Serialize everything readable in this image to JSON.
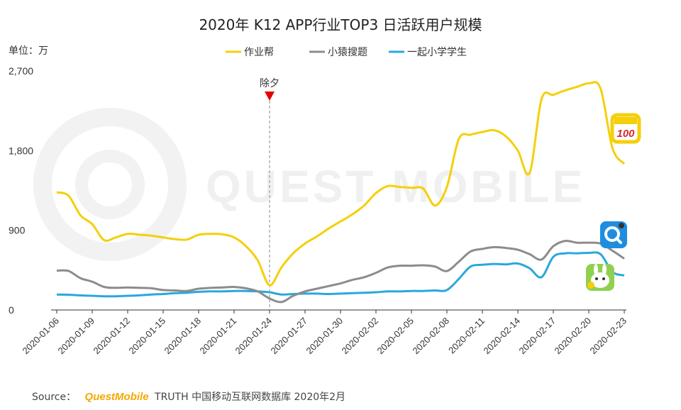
{
  "chart_data": {
    "type": "line",
    "title": "2020年 K12 APP行业TOP3 日活跃用户规模",
    "unit_label": "单位：万",
    "ylim": [
      0,
      2700
    ],
    "yticks": [
      0,
      900,
      1800,
      2700
    ],
    "ytick_labels": [
      "0",
      "900",
      "1,800",
      "2,700"
    ],
    "xtick_labels": [
      "2020-01-06",
      "2020-01-09",
      "2020-01-12",
      "2020-01-15",
      "2020-01-18",
      "2020-01-21",
      "2020-01-24",
      "2020-01-27",
      "2020-01-30",
      "2020-02-02",
      "2020-02-05",
      "2020-02-08",
      "2020-02-11",
      "2020-02-14",
      "2020-02-17",
      "2020-02-20",
      "2020-02-23"
    ],
    "x": [
      "2020-01-06",
      "2020-01-07",
      "2020-01-08",
      "2020-01-09",
      "2020-01-10",
      "2020-01-11",
      "2020-01-12",
      "2020-01-13",
      "2020-01-14",
      "2020-01-15",
      "2020-01-16",
      "2020-01-17",
      "2020-01-18",
      "2020-01-19",
      "2020-01-20",
      "2020-01-21",
      "2020-01-22",
      "2020-01-23",
      "2020-01-24",
      "2020-01-25",
      "2020-01-26",
      "2020-01-27",
      "2020-01-28",
      "2020-01-29",
      "2020-01-30",
      "2020-01-31",
      "2020-02-01",
      "2020-02-02",
      "2020-02-03",
      "2020-02-04",
      "2020-02-05",
      "2020-02-06",
      "2020-02-07",
      "2020-02-08",
      "2020-02-09",
      "2020-02-10",
      "2020-02-11",
      "2020-02-12",
      "2020-02-13",
      "2020-02-14",
      "2020-02-15",
      "2020-02-16",
      "2020-02-17",
      "2020-02-18",
      "2020-02-19",
      "2020-02-20",
      "2020-02-21",
      "2020-02-22",
      "2020-02-23"
    ],
    "series": [
      {
        "name": "作业帮",
        "color": "#f5cf0a",
        "values": [
          1330,
          1290,
          1070,
          970,
          790,
          820,
          860,
          850,
          840,
          820,
          800,
          795,
          850,
          860,
          855,
          820,
          720,
          560,
          280,
          480,
          640,
          750,
          830,
          920,
          1000,
          1080,
          1180,
          1320,
          1400,
          1390,
          1380,
          1370,
          1180,
          1390,
          1930,
          1980,
          2010,
          2030,
          1960,
          1800,
          1550,
          2380,
          2430,
          2480,
          2520,
          2560,
          2500,
          1830,
          1650
        ]
      },
      {
        "name": "小猿搜题",
        "color": "#8c8c8c",
        "values": [
          445,
          440,
          360,
          320,
          260,
          250,
          255,
          250,
          245,
          225,
          220,
          215,
          240,
          250,
          255,
          260,
          245,
          210,
          130,
          90,
          160,
          210,
          240,
          270,
          300,
          340,
          370,
          420,
          480,
          500,
          500,
          505,
          490,
          440,
          545,
          660,
          690,
          710,
          700,
          680,
          630,
          570,
          720,
          780,
          760,
          760,
          750,
          670,
          580
        ]
      },
      {
        "name": "一起小学学生",
        "color": "#29a8dc",
        "values": [
          175,
          172,
          165,
          160,
          155,
          155,
          160,
          165,
          175,
          180,
          190,
          195,
          205,
          210,
          210,
          215,
          215,
          210,
          200,
          175,
          180,
          185,
          185,
          180,
          185,
          190,
          195,
          200,
          210,
          210,
          215,
          215,
          220,
          225,
          350,
          490,
          510,
          520,
          515,
          525,
          470,
          370,
          600,
          640,
          640,
          645,
          630,
          430,
          390
        ]
      }
    ],
    "annotation": {
      "label": "除夕",
      "x": "2020-01-24"
    },
    "legend_position": "top-center",
    "grid": false
  },
  "source": {
    "prefix": "Source：",
    "brand": "QuestMobile",
    "suffix": "TRUTH 中国移动互联网数据库 2020年2月"
  },
  "watermark": {
    "text": "QUEST MOBILE"
  },
  "app_icons": [
    {
      "series": "作业帮",
      "label": "100",
      "color": "#f5cf0a"
    },
    {
      "series": "小猿搜题",
      "icon": "search-q-icon",
      "color": "#1e8de0"
    },
    {
      "series": "一起小学学生",
      "icon": "cartoon-rabbit-icon",
      "color": "#8fd14f"
    }
  ]
}
